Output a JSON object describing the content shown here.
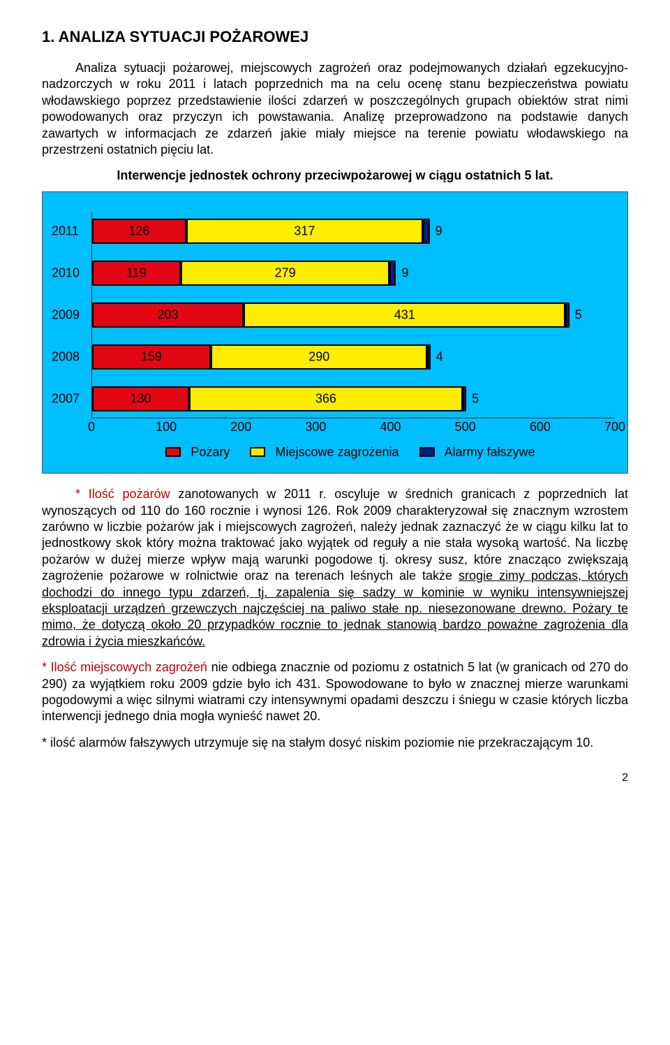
{
  "heading": "1. ANALIZA SYTUACJI POŻAROWEJ",
  "para1": "Analiza sytuacji pożarowej, miejscowych zagrożeń oraz podejmowanych działań egzekucyjno- nadzorczych w roku 2011 i latach poprzednich ma na celu ocenę stanu bezpieczeństwa powiatu włodawskiego poprzez przedstawienie ilości zdarzeń w poszczególnych grupach obiektów strat nimi powodowanych oraz przyczyn ich powstawania. Analizę przeprowadzono na podstawie danych zawartych w informacjach ze zdarzeń jakie miały miejsce na terenie powiatu włodawskiego na przestrzeni ostatnich pięciu lat.",
  "chart": {
    "title": "Interwencje jednostek ochrony przeciwpożarowej w ciągu ostatnich 5 lat.",
    "xmax": 700,
    "xticks": [
      0,
      100,
      200,
      300,
      400,
      500,
      600,
      700
    ],
    "rows": [
      {
        "year": "2011",
        "red": 126,
        "yellow": 317,
        "blue": 9
      },
      {
        "year": "2010",
        "red": 119,
        "yellow": 279,
        "blue": 9
      },
      {
        "year": "2009",
        "red": 203,
        "yellow": 431,
        "blue": 5
      },
      {
        "year": "2008",
        "red": 159,
        "yellow": 290,
        "blue": 4
      },
      {
        "year": "2007",
        "red": 130,
        "yellow": 366,
        "blue": 5
      }
    ],
    "legend": {
      "red": "Pożary",
      "yellow": "Miejscowe zagrożenia",
      "blue": "Alarmy fałszywe"
    }
  },
  "para2_lead": "* Ilość pożarów",
  "para2_rest_a": " zanotowanych w 2011 r. oscyluje w średnich granicach z poprzednich lat wynoszących od 110 do 160 rocznie i wynosi 126. Rok 2009 charakteryzował się znacznym wzrostem zarówno w liczbie pożarów jak i miejscowych zagrożeń, należy jednak zaznaczyć że w ciągu kilku lat to jednostkowy skok który można traktować jako wyjątek od reguły a nie stała wysoką wartość. Na liczbę pożarów w dużej mierze wpływ mają warunki pogodowe tj. okresy susz, które znacząco zwiększają zagrożenie pożarowe w rolnictwie oraz na terenach leśnych ale także ",
  "para2_ul1": "srogie zimy podczas, których dochodzi do innego typu zdarzeń, tj. zapalenia się sadzy w kominie w wyniku intensywniejszej eksploatacji urządzeń grzewczych najczęściej na paliwo stałe np. niesezonowane drewno. Pożary te mimo, że dotyczą około 20 przypadków rocznie to jednak stanowią bardzo poważne zagrożenia dla zdrowia i życia mieszkańców.",
  "para3_lead": "* Ilość miejscowych zagrożeń",
  "para3_rest": " nie odbiega znacznie od poziomu z ostatnich 5 lat (w granicach od 270 do 290) za wyjątkiem roku 2009 gdzie było ich 431. Spowodowane to było w znacznej mierze warunkami pogodowymi a więc silnymi wiatrami czy intensywnymi opadami deszczu i śniegu w czasie których liczba interwencji jednego dnia mogła wynieść nawet 20.",
  "para4_lead": "* ilość alarmów fałszywych",
  "para4_rest": " utrzymuje się na stałym dosyć niskim poziomie nie przekraczającym 10.",
  "pagenum": "2"
}
